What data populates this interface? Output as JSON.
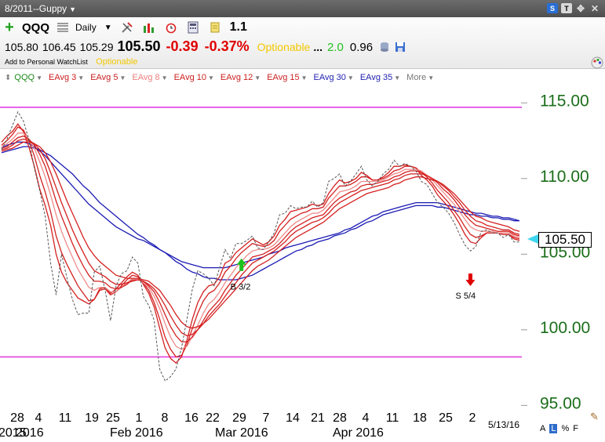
{
  "window": {
    "title": "8/2011--Guppy"
  },
  "toolbar": {
    "symbol": "QQQ",
    "period": "Daily",
    "factor": "1.1",
    "add_watchlist": "Add to Personal WatchList",
    "optionable_label": "Optionable"
  },
  "quote": {
    "open": "105.80",
    "high": "106.45",
    "low": "105.29",
    "last": "105.50",
    "change": "-0.39",
    "change_pct": "-0.37%",
    "optionable": "Optionable",
    "dots": "...",
    "green_value": "2.0",
    "beta": "0.96"
  },
  "legend": [
    {
      "label": "QQQ",
      "color": "#1a8a1a"
    },
    {
      "label": "EAvg 3",
      "color": "#cc1f1f"
    },
    {
      "label": "EAvg 5",
      "color": "#cc1f1f"
    },
    {
      "label": "EAvg 8",
      "color": "#ee7f7f"
    },
    {
      "label": "EAvg 10",
      "color": "#cc1f1f"
    },
    {
      "label": "EAvg 12",
      "color": "#cc1f1f"
    },
    {
      "label": "EAvg 15",
      "color": "#cc1f1f"
    },
    {
      "label": "EAvg 30",
      "color": "#1f1fb0"
    },
    {
      "label": "EAvg 35",
      "color": "#1f1fb0"
    },
    {
      "label": "More",
      "color": "#777777"
    }
  ],
  "footer": {
    "date": "5/13/16",
    "buttons": [
      "A",
      "L",
      "%",
      "F"
    ],
    "selected": "L"
  },
  "colors": {
    "red_ma": "#d42020",
    "pink_ma": "#f08a8a",
    "blue_ma": "#1a1ab4",
    "price": "#555555",
    "reference": "#e040e0",
    "axis_label": "#1a6e1a"
  },
  "chart_data": {
    "type": "line",
    "title": "",
    "xlabel": "",
    "ylabel": "",
    "ylim": [
      94.5,
      116
    ],
    "y_ticks": [
      "95.00",
      "100.00",
      "105.00",
      "110.00",
      "115.00"
    ],
    "x_tick_labels": [
      "28",
      "4",
      "11",
      "19",
      "25",
      "1",
      "8",
      "16",
      "22",
      "29",
      "7",
      "14",
      "21",
      "28",
      "4",
      "11",
      "18",
      "25",
      "2"
    ],
    "month_labels": [
      "2015",
      "2016",
      "Feb 2016",
      "Mar 2016",
      "Apr 2016"
    ],
    "reference_lines": [
      114.5,
      98.0
    ],
    "current_price": "105.50",
    "annotations": [
      {
        "label": "B 3/2",
        "x_index": 44,
        "y": 104.1,
        "kind": "buy",
        "color": "#1cc21c"
      },
      {
        "label": "S 5/4",
        "x_index": 86,
        "y": 103.1,
        "kind": "sell",
        "color": "#e00000"
      }
    ],
    "price": [
      111.7,
      112.4,
      113.3,
      114.2,
      113.6,
      112.4,
      110.5,
      109.0,
      107.3,
      104.2,
      102.1,
      104.8,
      103.2,
      101.8,
      100.8,
      100.9,
      100.9,
      103.6,
      104.0,
      102.4,
      100.4,
      102.7,
      103.5,
      103.7,
      104.6,
      104.2,
      102.0,
      101.4,
      100.4,
      97.2,
      96.4,
      96.7,
      97.2,
      98.6,
      100.5,
      102.5,
      103.7,
      103.5,
      103.2,
      102.7,
      103.9,
      105.1,
      104.5,
      105.5,
      105.5,
      105.7,
      106.0,
      105.2,
      105.1,
      105.6,
      106.2,
      107.4,
      107.5,
      108.0,
      107.8,
      107.9,
      107.9,
      108.3,
      107.9,
      108.2,
      109.6,
      109.8,
      110.1,
      109.3,
      109.6,
      110.1,
      110.6,
      109.7,
      109.3,
      109.6,
      110.1,
      110.4,
      111.0,
      110.6,
      110.8,
      110.6,
      110.3,
      109.6,
      109.4,
      108.8,
      108.2,
      107.9,
      107.5,
      106.9,
      106.1,
      105.4,
      105.0,
      105.3,
      106.3,
      106.4,
      106.2,
      106.2,
      105.9,
      106.1,
      105.6,
      105.6
    ],
    "series": [
      {
        "name": "EAvg 3",
        "values": [
          112.2,
          112.6,
          112.9,
          113.4,
          112.9,
          111.9,
          110.6,
          109.1,
          108.0,
          106.7,
          104.8,
          103.6,
          102.9,
          102.4,
          101.9,
          101.7,
          101.5,
          101.8,
          102.5,
          102.6,
          102.2,
          102.5,
          102.9,
          103.3,
          103.6,
          103.4,
          102.8,
          102.2,
          101.3,
          99.9,
          98.6,
          97.9,
          97.6,
          98.0,
          99.1,
          100.5,
          101.6,
          102.3,
          102.7,
          102.8,
          103.3,
          104.2,
          104.4,
          104.9,
          105.2,
          105.5,
          105.8,
          105.6,
          105.4,
          105.6,
          106.0,
          106.7,
          107.1,
          107.6,
          107.7,
          107.8,
          107.9,
          108.1,
          108.0,
          108.1,
          108.8,
          109.3,
          109.7,
          109.5,
          109.6,
          109.8,
          110.2,
          110.0,
          109.7,
          109.7,
          109.9,
          110.2,
          110.6,
          110.6,
          110.7,
          110.6,
          110.5,
          110.0,
          109.7,
          109.3,
          108.7,
          108.3,
          107.9,
          107.4,
          106.8,
          106.1,
          105.6,
          105.5,
          105.9,
          106.2,
          106.2,
          106.2,
          106.1,
          106.1,
          105.8,
          105.7
        ]
      },
      {
        "name": "EAvg 5",
        "values": [
          112.0,
          112.3,
          112.7,
          113.2,
          113.0,
          112.3,
          111.3,
          110.0,
          108.9,
          107.6,
          106.0,
          104.9,
          104.1,
          103.4,
          102.7,
          102.2,
          101.7,
          101.8,
          102.4,
          102.5,
          102.1,
          102.3,
          102.7,
          103.1,
          103.4,
          103.3,
          102.9,
          102.4,
          101.6,
          100.5,
          99.3,
          98.5,
          98.0,
          98.1,
          98.8,
          99.9,
          100.9,
          101.7,
          102.2,
          102.4,
          102.9,
          103.6,
          104.0,
          104.5,
          104.9,
          105.2,
          105.5,
          105.4,
          105.3,
          105.4,
          105.7,
          106.3,
          106.7,
          107.1,
          107.3,
          107.5,
          107.6,
          107.8,
          107.8,
          107.9,
          108.5,
          108.9,
          109.3,
          109.3,
          109.4,
          109.6,
          109.9,
          109.9,
          109.7,
          109.7,
          109.8,
          110.0,
          110.3,
          110.4,
          110.6,
          110.6,
          110.5,
          110.2,
          109.9,
          109.5,
          109.0,
          108.6,
          108.2,
          107.7,
          107.2,
          106.6,
          106.1,
          105.9,
          106.0,
          106.2,
          106.2,
          106.2,
          106.1,
          106.1,
          105.9,
          105.8
        ]
      },
      {
        "name": "EAvg 8",
        "values": [
          111.9,
          112.1,
          112.4,
          112.8,
          112.8,
          112.4,
          111.8,
          110.9,
          109.9,
          108.7,
          107.4,
          106.3,
          105.4,
          104.6,
          103.8,
          103.2,
          102.6,
          102.4,
          102.6,
          102.6,
          102.3,
          102.3,
          102.6,
          102.9,
          103.2,
          103.2,
          102.9,
          102.6,
          102.0,
          101.2,
          100.2,
          99.3,
          98.7,
          98.5,
          98.7,
          99.4,
          100.1,
          100.9,
          101.5,
          101.8,
          102.3,
          102.9,
          103.4,
          103.9,
          104.3,
          104.7,
          105.0,
          105.1,
          105.1,
          105.2,
          105.4,
          105.8,
          106.2,
          106.6,
          106.9,
          107.1,
          107.3,
          107.5,
          107.5,
          107.7,
          108.1,
          108.5,
          108.9,
          109.0,
          109.1,
          109.3,
          109.6,
          109.6,
          109.6,
          109.6,
          109.7,
          109.9,
          110.1,
          110.2,
          110.4,
          110.4,
          110.4,
          110.3,
          110.0,
          109.7,
          109.3,
          108.9,
          108.5,
          108.1,
          107.6,
          107.1,
          106.6,
          106.4,
          106.3,
          106.3,
          106.3,
          106.2,
          106.2,
          106.2,
          106.0,
          105.9
        ]
      },
      {
        "name": "EAvg 10",
        "values": [
          111.8,
          111.9,
          112.2,
          112.5,
          112.6,
          112.4,
          112.0,
          111.4,
          110.6,
          109.5,
          108.3,
          107.3,
          106.4,
          105.5,
          104.7,
          104.0,
          103.4,
          103.0,
          103.0,
          102.9,
          102.6,
          102.5,
          102.6,
          102.8,
          103.1,
          103.1,
          103.0,
          102.7,
          102.3,
          101.6,
          100.8,
          100.0,
          99.4,
          99.0,
          99.0,
          99.3,
          99.8,
          100.4,
          101.0,
          101.4,
          101.8,
          102.4,
          102.9,
          103.4,
          103.8,
          104.2,
          104.6,
          104.7,
          104.8,
          105.0,
          105.2,
          105.5,
          105.9,
          106.3,
          106.6,
          106.8,
          107.0,
          107.2,
          107.3,
          107.4,
          107.8,
          108.2,
          108.5,
          108.7,
          108.9,
          109.0,
          109.3,
          109.4,
          109.4,
          109.5,
          109.6,
          109.7,
          109.9,
          110.0,
          110.2,
          110.3,
          110.3,
          110.2,
          110.0,
          109.8,
          109.5,
          109.1,
          108.8,
          108.4,
          107.9,
          107.4,
          107.0,
          106.7,
          106.6,
          106.5,
          106.4,
          106.3,
          106.3,
          106.3,
          106.1,
          106.0
        ]
      },
      {
        "name": "EAvg 12",
        "values": [
          111.7,
          111.8,
          112.0,
          112.3,
          112.4,
          112.3,
          112.1,
          111.7,
          111.1,
          110.2,
          109.2,
          108.2,
          107.3,
          106.4,
          105.6,
          104.9,
          104.2,
          103.7,
          103.5,
          103.3,
          103.0,
          102.8,
          102.8,
          102.9,
          103.0,
          103.1,
          103.0,
          102.8,
          102.5,
          102.0,
          101.4,
          100.7,
          100.1,
          99.6,
          99.4,
          99.5,
          99.8,
          100.2,
          100.7,
          101.1,
          101.5,
          102.0,
          102.5,
          102.9,
          103.4,
          103.8,
          104.2,
          104.4,
          104.6,
          104.8,
          105.0,
          105.3,
          105.6,
          106.0,
          106.3,
          106.5,
          106.7,
          106.9,
          107.0,
          107.2,
          107.5,
          107.9,
          108.2,
          108.4,
          108.6,
          108.8,
          109.0,
          109.1,
          109.2,
          109.3,
          109.4,
          109.5,
          109.7,
          109.8,
          110.0,
          110.1,
          110.1,
          110.1,
          110.0,
          109.8,
          109.6,
          109.3,
          109.0,
          108.6,
          108.2,
          107.7,
          107.3,
          107.0,
          106.9,
          106.7,
          106.6,
          106.5,
          106.4,
          106.4,
          106.2,
          106.1
        ]
      },
      {
        "name": "EAvg 15",
        "values": [
          111.6,
          111.7,
          111.8,
          112.0,
          112.2,
          112.2,
          112.1,
          111.9,
          111.5,
          110.9,
          110.1,
          109.2,
          108.3,
          107.5,
          106.7,
          105.9,
          105.2,
          104.7,
          104.3,
          104.0,
          103.7,
          103.4,
          103.3,
          103.2,
          103.2,
          103.2,
          103.1,
          103.0,
          102.7,
          102.4,
          101.9,
          101.4,
          100.8,
          100.3,
          100.0,
          99.9,
          100.0,
          100.2,
          100.5,
          100.9,
          101.3,
          101.7,
          102.1,
          102.5,
          102.9,
          103.3,
          103.7,
          104.0,
          104.2,
          104.4,
          104.7,
          105.0,
          105.3,
          105.6,
          105.9,
          106.1,
          106.3,
          106.5,
          106.7,
          106.9,
          107.2,
          107.5,
          107.8,
          108.0,
          108.2,
          108.4,
          108.6,
          108.8,
          108.9,
          109.0,
          109.1,
          109.2,
          109.4,
          109.5,
          109.7,
          109.8,
          109.9,
          109.9,
          109.8,
          109.7,
          109.6,
          109.4,
          109.1,
          108.8,
          108.4,
          108.0,
          107.6,
          107.3,
          107.2,
          107.0,
          106.9,
          106.8,
          106.7,
          106.6,
          106.4,
          106.3
        ]
      },
      {
        "name": "EAvg 30",
        "values": [
          111.8,
          112.0,
          112.1,
          112.2,
          112.2,
          112.1,
          111.9,
          111.6,
          111.3,
          110.9,
          110.5,
          110.1,
          109.7,
          109.3,
          108.9,
          108.5,
          108.1,
          107.8,
          107.5,
          107.2,
          106.9,
          106.6,
          106.4,
          106.2,
          106.0,
          105.8,
          105.7,
          105.5,
          105.3,
          105.1,
          104.9,
          104.7,
          104.5,
          104.3,
          104.2,
          104.1,
          104.0,
          103.9,
          103.9,
          103.9,
          103.9,
          103.9,
          104.0,
          104.1,
          104.2,
          104.3,
          104.4,
          104.5,
          104.6,
          104.8,
          104.9,
          105.0,
          105.2,
          105.3,
          105.4,
          105.5,
          105.6,
          105.7,
          105.8,
          105.9,
          106.0,
          106.1,
          106.2,
          106.4,
          106.5,
          106.7,
          106.9,
          107.1,
          107.3,
          107.4,
          107.6,
          107.7,
          107.8,
          107.9,
          108.0,
          108.1,
          108.2,
          108.2,
          108.2,
          108.2,
          108.2,
          108.1,
          108.0,
          107.9,
          107.8,
          107.7,
          107.6,
          107.5,
          107.5,
          107.4,
          107.3,
          107.3,
          107.2,
          107.2,
          107.1,
          107.0
        ]
      },
      {
        "name": "EAvg 35",
        "values": [
          111.5,
          111.6,
          111.7,
          111.8,
          111.9,
          111.9,
          111.8,
          111.7,
          111.5,
          111.3,
          111.0,
          110.7,
          110.4,
          110.1,
          109.7,
          109.3,
          109.0,
          108.6,
          108.2,
          107.9,
          107.6,
          107.3,
          107.0,
          106.7,
          106.4,
          106.1,
          105.9,
          105.6,
          105.4,
          105.1,
          104.9,
          104.6,
          104.3,
          104.1,
          103.8,
          103.6,
          103.5,
          103.3,
          103.2,
          103.2,
          103.1,
          103.1,
          103.1,
          103.1,
          103.2,
          103.3,
          103.4,
          103.6,
          103.8,
          104.0,
          104.2,
          104.4,
          104.6,
          104.8,
          105.0,
          105.1,
          105.3,
          105.4,
          105.6,
          105.7,
          105.8,
          106.0,
          106.1,
          106.2,
          106.4,
          106.5,
          106.7,
          106.9,
          107.0,
          107.2,
          107.4,
          107.5,
          107.6,
          107.7,
          107.8,
          107.9,
          108.0,
          108.0,
          108.0,
          108.0,
          107.9,
          107.9,
          107.8,
          107.7,
          107.6,
          107.5,
          107.4,
          107.4,
          107.3,
          107.3,
          107.2,
          107.2,
          107.1,
          107.1,
          107.0,
          107.0
        ]
      }
    ]
  }
}
